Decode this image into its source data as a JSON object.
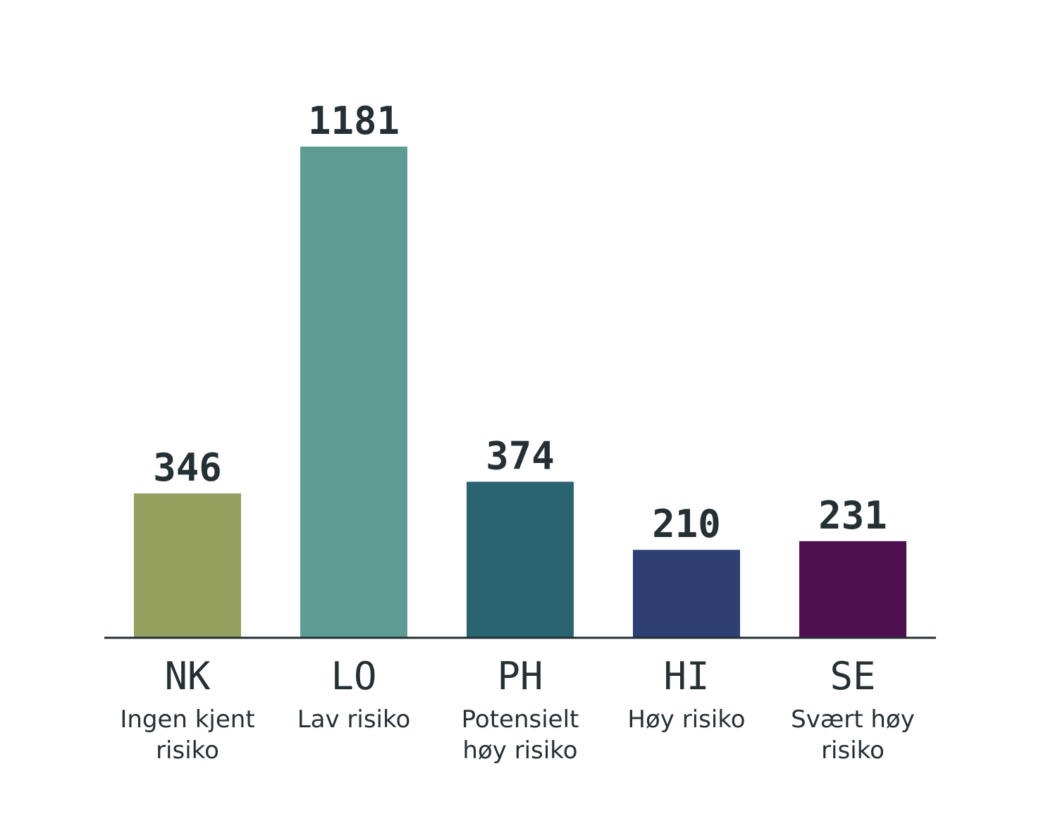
{
  "chart_data": {
    "type": "bar",
    "categories": [
      "NK",
      "LO",
      "PH",
      "HI",
      "SE"
    ],
    "category_descriptions": [
      [
        "Ingen kjent",
        "risiko"
      ],
      [
        "Lav risiko"
      ],
      [
        "Potensielt",
        "høy risiko"
      ],
      [
        "Høy risiko"
      ],
      [
        "Svært høy",
        "risiko"
      ]
    ],
    "values": [
      346,
      1181,
      374,
      210,
      231
    ],
    "colors": [
      "#96a05e",
      "#5e9c93",
      "#2a6470",
      "#2f3e70",
      "#4f1050"
    ],
    "data_labels": true
  }
}
